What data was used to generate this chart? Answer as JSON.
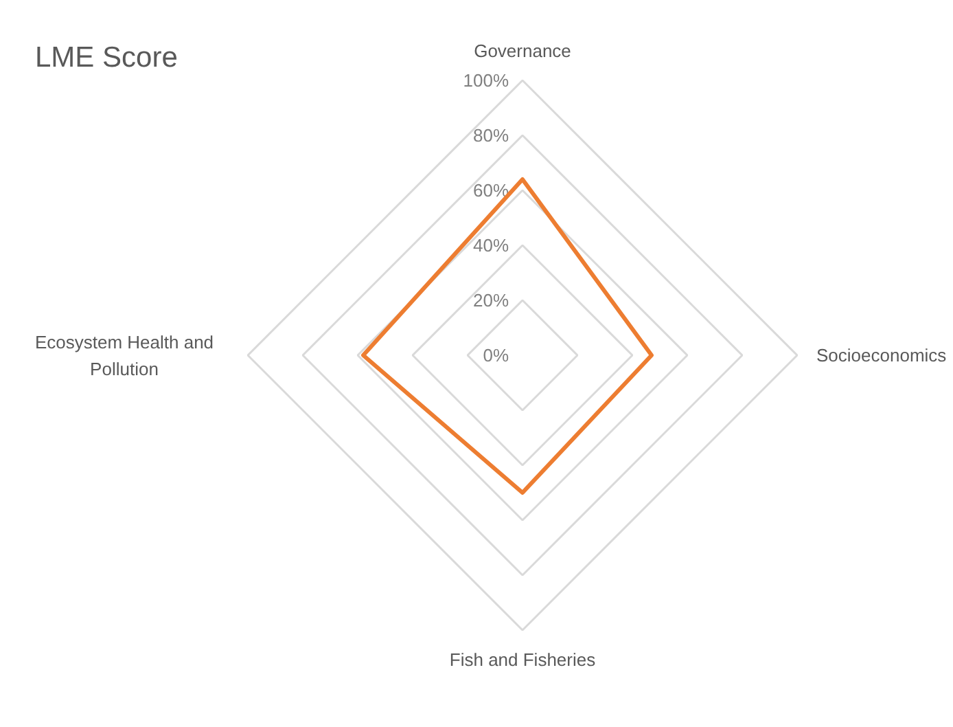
{
  "chart_data": {
    "type": "radar",
    "title": "LME Score",
    "categories": [
      "Governance",
      "Socioeconomics",
      "Fish and Fisheries",
      "Ecosystem Health and Pollution"
    ],
    "series": [
      {
        "color": "#ed7d31",
        "values": [
          64,
          47,
          50,
          58
        ]
      }
    ],
    "ylim": [
      0,
      100
    ],
    "yticks": [
      {
        "value": 0,
        "label": "0%"
      },
      {
        "value": 20,
        "label": "20%"
      },
      {
        "value": 40,
        "label": "40%"
      },
      {
        "value": 60,
        "label": "60%"
      },
      {
        "value": 80,
        "label": "80%"
      },
      {
        "value": 100,
        "label": "100%"
      }
    ],
    "grid": true
  }
}
